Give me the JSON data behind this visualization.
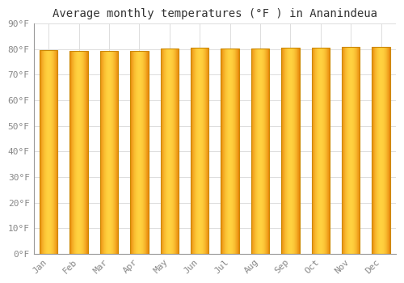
{
  "title": "Average monthly temperatures (°F ) in Ananindeua",
  "months": [
    "Jan",
    "Feb",
    "Mar",
    "Apr",
    "May",
    "Jun",
    "Jul",
    "Aug",
    "Sep",
    "Oct",
    "Nov",
    "Dec"
  ],
  "values": [
    79.5,
    79.3,
    79.3,
    79.3,
    80.2,
    80.4,
    80.1,
    80.2,
    80.6,
    80.6,
    80.8,
    80.8
  ],
  "bar_color_left": "#E8860A",
  "bar_color_center": "#FFD060",
  "bar_color_right": "#E8860A",
  "bar_edge_color": "#CC8800",
  "background_color": "#FFFFFF",
  "plot_bg_color": "#FFFFFF",
  "grid_color": "#DDDDDD",
  "ylim": [
    0,
    90
  ],
  "yticks": [
    0,
    10,
    20,
    30,
    40,
    50,
    60,
    70,
    80,
    90
  ],
  "title_fontsize": 10,
  "tick_fontsize": 8,
  "font_family": "monospace"
}
